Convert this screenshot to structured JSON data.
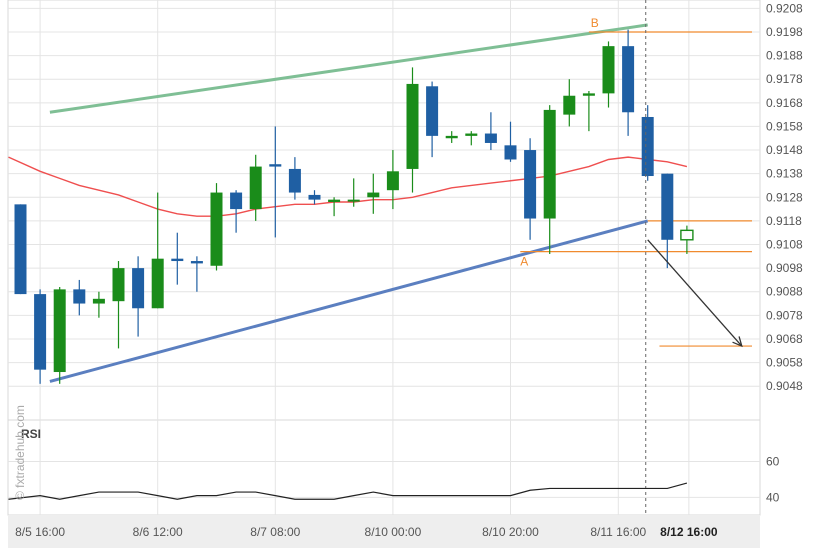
{
  "chart_data": {
    "type": "candlestick",
    "watermark": "© fxtradehub.com",
    "price_axis": {
      "ticks": [
        "0.9208",
        "0.9198",
        "0.9188",
        "0.9178",
        "0.9168",
        "0.9158",
        "0.9148",
        "0.9138",
        "0.9128",
        "0.9118",
        "0.9108",
        "0.9098",
        "0.9088",
        "0.9078",
        "0.9068",
        "0.9058",
        "0.9048"
      ],
      "range": [
        0.9043,
        0.9209
      ]
    },
    "time_axis": {
      "labels": [
        "8/5 16:00",
        "8/6 12:00",
        "8/7 08:00",
        "8/10 00:00",
        "8/10 20:00",
        "8/11 16:00",
        "8/12 16:00"
      ]
    },
    "candles": [
      {
        "o": 0.9125,
        "h": 0.9125,
        "l": 0.9087,
        "c": 0.9087
      },
      {
        "o": 0.9087,
        "h": 0.9089,
        "l": 0.9049,
        "c": 0.9055
      },
      {
        "o": 0.9054,
        "h": 0.909,
        "l": 0.9049,
        "c": 0.9089
      },
      {
        "o": 0.9089,
        "h": 0.9093,
        "l": 0.9078,
        "c": 0.9083
      },
      {
        "o": 0.9083,
        "h": 0.9088,
        "l": 0.9077,
        "c": 0.9085
      },
      {
        "o": 0.9084,
        "h": 0.9101,
        "l": 0.9064,
        "c": 0.9098
      },
      {
        "o": 0.9098,
        "h": 0.9103,
        "l": 0.9069,
        "c": 0.9081
      },
      {
        "o": 0.9081,
        "h": 0.913,
        "l": 0.9081,
        "c": 0.9102
      },
      {
        "o": 0.9102,
        "h": 0.9113,
        "l": 0.9091,
        "c": 0.9101
      },
      {
        "o": 0.9101,
        "h": 0.9103,
        "l": 0.9088,
        "c": 0.91
      },
      {
        "o": 0.9099,
        "h": 0.9134,
        "l": 0.9097,
        "c": 0.913
      },
      {
        "o": 0.913,
        "h": 0.9131,
        "l": 0.9113,
        "c": 0.9123
      },
      {
        "o": 0.9123,
        "h": 0.9146,
        "l": 0.9118,
        "c": 0.9141
      },
      {
        "o": 0.9142,
        "h": 0.9158,
        "l": 0.9111,
        "c": 0.9141
      },
      {
        "o": 0.914,
        "h": 0.9145,
        "l": 0.9127,
        "c": 0.913
      },
      {
        "o": 0.9129,
        "h": 0.9131,
        "l": 0.9125,
        "c": 0.9127
      },
      {
        "o": 0.9126,
        "h": 0.9128,
        "l": 0.912,
        "c": 0.9127
      },
      {
        "o": 0.9127,
        "h": 0.9136,
        "l": 0.9124,
        "c": 0.9127
      },
      {
        "o": 0.9128,
        "h": 0.9138,
        "l": 0.9121,
        "c": 0.913
      },
      {
        "o": 0.9131,
        "h": 0.9148,
        "l": 0.9123,
        "c": 0.9139
      },
      {
        "o": 0.914,
        "h": 0.9183,
        "l": 0.913,
        "c": 0.9176
      },
      {
        "o": 0.9175,
        "h": 0.9177,
        "l": 0.9145,
        "c": 0.9154
      },
      {
        "o": 0.9153,
        "h": 0.9156,
        "l": 0.9151,
        "c": 0.9154
      },
      {
        "o": 0.9154,
        "h": 0.9156,
        "l": 0.915,
        "c": 0.9155
      },
      {
        "o": 0.9155,
        "h": 0.9164,
        "l": 0.9148,
        "c": 0.9151
      },
      {
        "o": 0.915,
        "h": 0.916,
        "l": 0.9143,
        "c": 0.9144
      },
      {
        "o": 0.9148,
        "h": 0.9153,
        "l": 0.911,
        "c": 0.9119
      },
      {
        "o": 0.9119,
        "h": 0.9167,
        "l": 0.9104,
        "c": 0.9165
      },
      {
        "o": 0.9163,
        "h": 0.9178,
        "l": 0.9158,
        "c": 0.9171
      },
      {
        "o": 0.9171,
        "h": 0.9173,
        "l": 0.9156,
        "c": 0.9172
      },
      {
        "o": 0.9172,
        "h": 0.9194,
        "l": 0.9166,
        "c": 0.9192
      },
      {
        "o": 0.9192,
        "h": 0.9199,
        "l": 0.9154,
        "c": 0.9164
      },
      {
        "o": 0.9162,
        "h": 0.9167,
        "l": 0.9135,
        "c": 0.9137
      },
      {
        "o": 0.9138,
        "h": 0.9138,
        "l": 0.9098,
        "c": 0.911
      },
      {
        "o": 0.911,
        "h": 0.9116,
        "l": 0.9104,
        "c": 0.9114
      }
    ],
    "moving_average": [
      0.9145,
      0.9139,
      0.9136,
      0.9133,
      0.9131,
      0.9129,
      0.9126,
      0.9123,
      0.9121,
      0.912,
      0.912,
      0.9121,
      0.9123,
      0.9124,
      0.9125,
      0.9125,
      0.9126,
      0.9126,
      0.9127,
      0.9127,
      0.9128,
      0.913,
      0.9132,
      0.9133,
      0.9134,
      0.9135,
      0.9136,
      0.9137,
      0.9139,
      0.9141,
      0.9144,
      0.9145,
      0.9144,
      0.9143,
      0.9141
    ],
    "trend_lines": [
      {
        "name": "upper-channel",
        "from": {
          "i": 1.5,
          "v": 0.9164
        },
        "to": {
          "i": 32,
          "v": 0.9201
        },
        "color": "#7fbf95"
      },
      {
        "name": "lower-channel",
        "from": {
          "i": 1.5,
          "v": 0.905
        },
        "to": {
          "i": 32,
          "v": 0.9118
        },
        "color": "#5b7fc0"
      }
    ],
    "levels": [
      {
        "label": "B",
        "value": 0.9198,
        "from_i": 29,
        "label_i": 29.3,
        "label_pos": "above"
      },
      {
        "label": "",
        "value": 0.9118,
        "from_i": 32,
        "label_i": null
      },
      {
        "label": "A",
        "value": 0.9105,
        "from_i": 25.5,
        "label_i": 25.7,
        "label_pos": "below"
      },
      {
        "label": "",
        "value": 0.9065,
        "from_i": 32.6,
        "label_i": null
      }
    ],
    "projection": {
      "from": {
        "i": 32,
        "v": 0.911
      },
      "to": {
        "i": 36.8,
        "v": 0.9065
      }
    },
    "marker_index": 31.9,
    "rsi": {
      "label": "RSI",
      "ticks": [
        "60",
        "40"
      ],
      "range": [
        33,
        72
      ],
      "values": [
        39,
        41,
        39,
        41,
        43,
        43,
        43,
        41,
        39,
        41,
        41,
        43,
        43,
        41,
        39,
        39,
        39,
        41,
        43,
        41,
        41,
        41,
        41,
        41,
        41,
        41,
        44,
        45,
        45,
        45,
        45,
        45,
        45,
        45,
        48
      ]
    },
    "colors": {
      "up": "#1a8c1a",
      "down": "#1f5fa3",
      "ma": "#ef4f4f",
      "level": "#f08a2e",
      "grid": "#e4e4e4",
      "axis_text": "#555555"
    }
  }
}
